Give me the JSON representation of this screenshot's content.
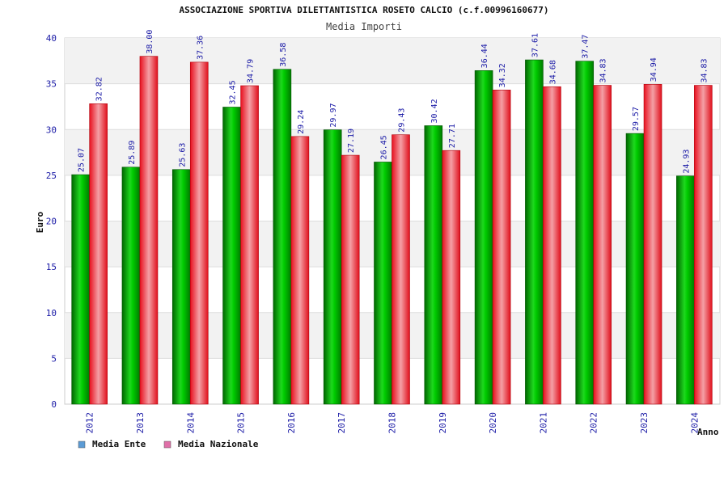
{
  "chart_data": {
    "type": "bar",
    "title": "ASSOCIAZIONE SPORTIVA DILETTANTISTICA ROSETO CALCIO (c.f.00996160677)",
    "subtitle": "Media Importi",
    "xlabel": "Anno",
    "ylabel": "Euro",
    "ylim": [
      0,
      40
    ],
    "yticks": [
      0,
      5,
      10,
      15,
      20,
      25,
      30,
      35,
      40
    ],
    "grid": true,
    "legend_position": "bottom-left",
    "categories": [
      "2012",
      "2013",
      "2014",
      "2015",
      "2016",
      "2017",
      "2018",
      "2019",
      "2020",
      "2021",
      "2022",
      "2023",
      "2024"
    ],
    "series": [
      {
        "name": "Media Ente",
        "color": "#00c000",
        "legend_color": "#5b9bd5",
        "values": [
          25.07,
          25.89,
          25.63,
          32.45,
          36.58,
          29.97,
          26.45,
          30.42,
          36.44,
          37.61,
          37.47,
          29.57,
          24.93
        ],
        "labels": [
          "25.07",
          "25.89",
          "25.63",
          "32.45",
          "36.58",
          "29.97",
          "26.45",
          "30.42",
          "36.44",
          "37.61",
          "37.47",
          "29.57",
          "24.93"
        ]
      },
      {
        "name": "Media Nazionale",
        "color": "#e8101e",
        "legend_color": "#e06fa8",
        "values": [
          32.82,
          38.0,
          37.36,
          34.79,
          29.24,
          27.19,
          29.43,
          27.71,
          34.32,
          34.68,
          34.83,
          34.94,
          34.83
        ],
        "labels": [
          "32.82",
          "38.00",
          "37.36",
          "34.79",
          "29.24",
          "27.19",
          "29.43",
          "27.71",
          "34.32",
          "34.68",
          "34.83",
          "34.94",
          "34.83"
        ]
      }
    ]
  }
}
